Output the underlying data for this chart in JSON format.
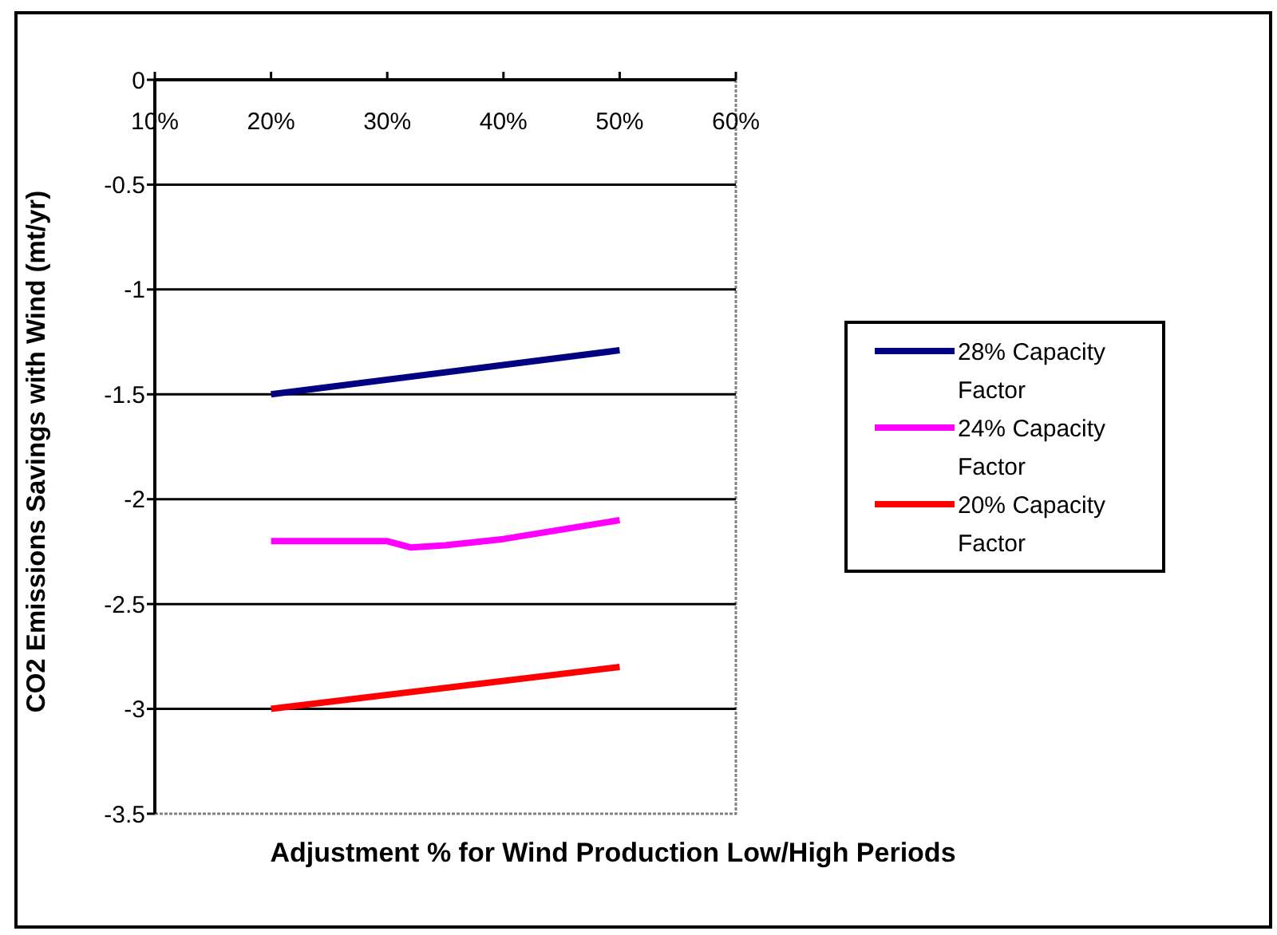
{
  "chart_data": {
    "type": "line",
    "xlabel": "Adjustment % for Wind Production Low/High Periods",
    "ylabel": "CO2 Emissions Savings with Wind (mt/yr)",
    "xlim": [
      10,
      60
    ],
    "xticks": [
      {
        "value": 10,
        "label": "10%"
      },
      {
        "value": 20,
        "label": "20%"
      },
      {
        "value": 30,
        "label": "30%"
      },
      {
        "value": 40,
        "label": "40%"
      },
      {
        "value": 50,
        "label": "50%"
      },
      {
        "value": 60,
        "label": "60%"
      }
    ],
    "ylim": [
      -3.5,
      0
    ],
    "yticks": [
      0,
      -0.5,
      -1,
      -1.5,
      -2,
      -2.5,
      -3,
      -3.5
    ],
    "grid": "y",
    "legend": "right",
    "series": [
      {
        "name": "28% Capacity Factor",
        "color": "#000080",
        "x": [
          20,
          50
        ],
        "values": [
          -1.5,
          -1.29
        ]
      },
      {
        "name": "24% Capacity Factor",
        "color": "#ff00ff",
        "x": [
          20,
          30,
          32,
          35,
          40,
          50
        ],
        "values": [
          -2.2,
          -2.2,
          -2.23,
          -2.22,
          -2.19,
          -2.1
        ]
      },
      {
        "name": "20% Capacity Factor",
        "color": "#ff0000",
        "x": [
          20,
          50
        ],
        "values": [
          -3.0,
          -2.8
        ]
      }
    ]
  }
}
